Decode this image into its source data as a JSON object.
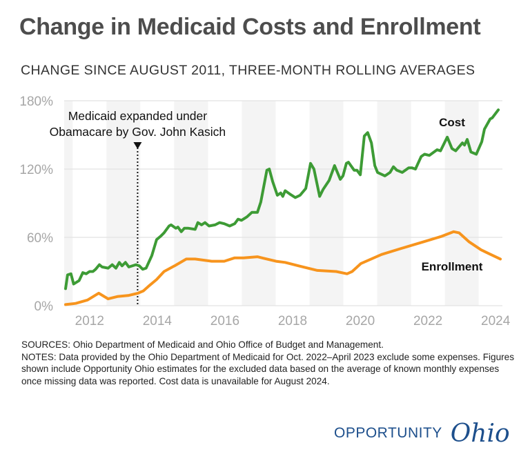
{
  "header": {
    "title": "Change in Medicaid Costs and Enrollment",
    "subtitle": "CHANGE SINCE AUGUST 2011, THREE-MONTH ROLLING AVERAGES"
  },
  "chart_data": {
    "type": "line",
    "title": "Change in Medicaid Costs and Enrollment",
    "subtitle": "CHANGE SINCE AUGUST 2011, THREE-MONTH ROLLING AVERAGES",
    "xlabel": "",
    "ylabel": "",
    "xlim": [
      2011.25,
      2024.2
    ],
    "ylim": [
      0,
      180
    ],
    "x_ticks": [
      2012,
      2014,
      2016,
      2018,
      2020,
      2022,
      2024
    ],
    "x_tick_labels": [
      "2012",
      "2014",
      "2016",
      "2018",
      "2020",
      "2022",
      "2024"
    ],
    "y_ticks": [
      0,
      60,
      120,
      180
    ],
    "y_tick_labels": [
      "0%",
      "60%",
      "120%",
      "180%"
    ],
    "grid": true,
    "alternating_year_bands": true,
    "annotation": {
      "x": 2013.42,
      "lines": [
        "Medicaid expanded under",
        "Obamacare by Gov. John Kasich"
      ]
    },
    "series": [
      {
        "name": "Cost",
        "color": "#3d9b35",
        "points": [
          [
            2011.29,
            15
          ],
          [
            2011.35,
            27
          ],
          [
            2011.45,
            28
          ],
          [
            2011.53,
            19
          ],
          [
            2011.69,
            22
          ],
          [
            2011.8,
            29
          ],
          [
            2011.9,
            28
          ],
          [
            2012.0,
            30
          ],
          [
            2012.1,
            30
          ],
          [
            2012.18,
            32
          ],
          [
            2012.29,
            36
          ],
          [
            2012.37,
            34
          ],
          [
            2012.55,
            33
          ],
          [
            2012.67,
            36
          ],
          [
            2012.78,
            33
          ],
          [
            2012.88,
            38
          ],
          [
            2012.96,
            35
          ],
          [
            2013.06,
            38
          ],
          [
            2013.16,
            34
          ],
          [
            2013.37,
            36
          ],
          [
            2013.47,
            35
          ],
          [
            2013.57,
            32
          ],
          [
            2013.67,
            33
          ],
          [
            2013.84,
            44
          ],
          [
            2013.98,
            58
          ],
          [
            2014.1,
            61
          ],
          [
            2014.2,
            64
          ],
          [
            2014.35,
            70
          ],
          [
            2014.41,
            71
          ],
          [
            2014.55,
            68
          ],
          [
            2014.61,
            69
          ],
          [
            2014.71,
            65
          ],
          [
            2014.8,
            68
          ],
          [
            2014.92,
            68
          ],
          [
            2015.12,
            67
          ],
          [
            2015.2,
            73
          ],
          [
            2015.31,
            71
          ],
          [
            2015.41,
            73
          ],
          [
            2015.53,
            70
          ],
          [
            2015.71,
            71
          ],
          [
            2015.84,
            73
          ],
          [
            2015.98,
            72
          ],
          [
            2016.14,
            70
          ],
          [
            2016.29,
            72
          ],
          [
            2016.39,
            76
          ],
          [
            2016.49,
            75
          ],
          [
            2016.65,
            78
          ],
          [
            2016.8,
            82
          ],
          [
            2016.96,
            82
          ],
          [
            2017.06,
            91
          ],
          [
            2017.24,
            119
          ],
          [
            2017.31,
            120
          ],
          [
            2017.41,
            109
          ],
          [
            2017.55,
            97
          ],
          [
            2017.65,
            99
          ],
          [
            2017.71,
            96
          ],
          [
            2017.78,
            101
          ],
          [
            2017.92,
            98
          ],
          [
            2018.08,
            95
          ],
          [
            2018.22,
            97
          ],
          [
            2018.39,
            103
          ],
          [
            2018.53,
            125
          ],
          [
            2018.63,
            120
          ],
          [
            2018.8,
            96
          ],
          [
            2018.9,
            102
          ],
          [
            2019.08,
            110
          ],
          [
            2019.24,
            123
          ],
          [
            2019.41,
            111
          ],
          [
            2019.49,
            114
          ],
          [
            2019.59,
            125
          ],
          [
            2019.65,
            126
          ],
          [
            2019.82,
            119
          ],
          [
            2019.9,
            119
          ],
          [
            2020.0,
            115
          ],
          [
            2020.12,
            149
          ],
          [
            2020.22,
            152
          ],
          [
            2020.33,
            143
          ],
          [
            2020.43,
            123
          ],
          [
            2020.51,
            117
          ],
          [
            2020.73,
            114
          ],
          [
            2020.88,
            117
          ],
          [
            2020.98,
            122
          ],
          [
            2021.08,
            119
          ],
          [
            2021.24,
            117
          ],
          [
            2021.43,
            121
          ],
          [
            2021.53,
            121
          ],
          [
            2021.63,
            120
          ],
          [
            2021.8,
            131
          ],
          [
            2021.9,
            133
          ],
          [
            2022.04,
            132
          ],
          [
            2022.27,
            137
          ],
          [
            2022.37,
            136
          ],
          [
            2022.57,
            148
          ],
          [
            2022.71,
            138
          ],
          [
            2022.82,
            136
          ],
          [
            2023.02,
            143
          ],
          [
            2023.08,
            141
          ],
          [
            2023.16,
            146
          ],
          [
            2023.27,
            135
          ],
          [
            2023.43,
            133
          ],
          [
            2023.59,
            144
          ],
          [
            2023.67,
            155
          ],
          [
            2023.84,
            164
          ],
          [
            2023.9,
            165
          ],
          [
            2024.08,
            172
          ]
        ]
      },
      {
        "name": "Enrollment",
        "color": "#f7941d",
        "points": [
          [
            2011.29,
            1
          ],
          [
            2011.59,
            2
          ],
          [
            2011.94,
            5
          ],
          [
            2012.27,
            11
          ],
          [
            2012.55,
            6
          ],
          [
            2012.82,
            8
          ],
          [
            2013.16,
            9
          ],
          [
            2013.43,
            11
          ],
          [
            2013.59,
            13
          ],
          [
            2013.78,
            18
          ],
          [
            2013.98,
            23
          ],
          [
            2014.2,
            30
          ],
          [
            2014.51,
            35
          ],
          [
            2014.86,
            41
          ],
          [
            2015.12,
            41
          ],
          [
            2015.61,
            39
          ],
          [
            2015.98,
            39
          ],
          [
            2016.29,
            42
          ],
          [
            2016.55,
            42
          ],
          [
            2016.96,
            43
          ],
          [
            2017.51,
            39
          ],
          [
            2017.78,
            38
          ],
          [
            2018.18,
            35
          ],
          [
            2018.73,
            31
          ],
          [
            2019.29,
            30
          ],
          [
            2019.61,
            28
          ],
          [
            2019.76,
            30
          ],
          [
            2020.02,
            37
          ],
          [
            2020.63,
            45
          ],
          [
            2021.18,
            50
          ],
          [
            2021.86,
            56
          ],
          [
            2022.41,
            61
          ],
          [
            2022.76,
            65
          ],
          [
            2022.92,
            64
          ],
          [
            2023.22,
            56
          ],
          [
            2023.57,
            49
          ],
          [
            2023.78,
            46
          ],
          [
            2024.14,
            41
          ]
        ]
      }
    ]
  },
  "footer": {
    "sources": "SOURCES: Ohio Department of Medicaid and Ohio Office of Budget and Management.",
    "notes": "NOTES: Data provided by the Ohio Department of Medicaid for Oct. 2022–April 2023 exclude some expenses. Figures shown include Opportunity Ohio estimates for the excluded data based on the average of known monthly expenses once missing data was reported. Cost data is unavailable for August 2024."
  },
  "logo": {
    "word1": "OPPORTUNITY",
    "word2": "Ohio",
    "color": "#1d4f8c"
  }
}
